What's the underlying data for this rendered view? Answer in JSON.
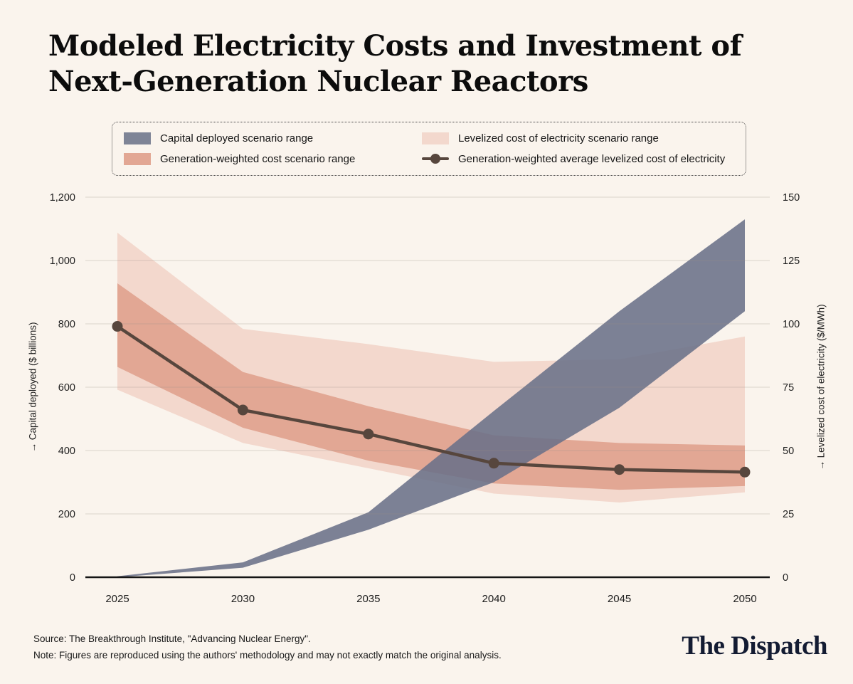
{
  "title": {
    "line1": "Modeled Electricity Costs and Investment of",
    "line2": "Next-Generation Nuclear Reactors"
  },
  "legend": {
    "items": [
      {
        "label": "Capital deployed scenario range",
        "series": 0,
        "marker": "swatch"
      },
      {
        "label": "Levelized cost of electricity scenario range",
        "series": 1,
        "marker": "swatch"
      },
      {
        "label": "Generation-weighted cost scenario range",
        "series": 2,
        "marker": "swatch"
      },
      {
        "label": "Generation-weighted average levelized cost of electricity",
        "series": 3,
        "marker": "line-dot"
      }
    ]
  },
  "chart_data": {
    "type": "area",
    "x": [
      2025,
      2030,
      2035,
      2040,
      2045,
      2050
    ],
    "x_labels": [
      "2025",
      "2030",
      "2035",
      "2040",
      "2045",
      "2050"
    ],
    "left_axis": {
      "label": "→ Capital deployed ($ billions)",
      "range": [
        0,
        1200
      ],
      "ticks": [
        0,
        200,
        400,
        600,
        800,
        1000,
        1200
      ],
      "tick_labels": [
        "0",
        "200",
        "400",
        "600",
        "800",
        "1,000",
        "1,200"
      ]
    },
    "right_axis": {
      "label": "→ Levelized cost of electricity ($/MWh)",
      "range": [
        0,
        150
      ],
      "ticks": [
        0,
        25,
        50,
        75,
        100,
        125,
        150
      ],
      "tick_labels": [
        "0",
        "25",
        "50",
        "75",
        "100",
        "125",
        "150"
      ]
    },
    "grid": "horizontal",
    "legend_position": "top",
    "series": [
      {
        "name": "Capital deployed scenario range",
        "type": "band",
        "axis": "left",
        "unit": "$ billions",
        "low": [
          0,
          30,
          150,
          300,
          535,
          840
        ],
        "high": [
          3,
          47,
          205,
          525,
          840,
          1130
        ],
        "color": "#7e8496",
        "fill": "#6a7189",
        "fill_opacity": 0.88
      },
      {
        "name": "Levelized cost of electricity scenario range",
        "type": "band",
        "axis": "right",
        "unit": "$/MWh",
        "low": [
          74,
          53,
          43,
          33,
          29.5,
          33.5
        ],
        "high": [
          136,
          98,
          92,
          85,
          86,
          95
        ],
        "color": "#f3d8cd"
      },
      {
        "name": "Generation-weighted cost scenario range",
        "type": "band",
        "axis": "right",
        "unit": "$/MWh",
        "low": [
          83,
          59,
          46,
          37,
          34.5,
          36
        ],
        "high": [
          116,
          81,
          67.5,
          56,
          53,
          52
        ],
        "color": "#e2a794"
      },
      {
        "name": "Generation-weighted average levelized cost of electricity",
        "type": "line",
        "axis": "right",
        "unit": "$/MWh",
        "values": [
          99,
          66,
          56.5,
          45,
          42.5,
          41.5
        ],
        "color": "#57463d"
      }
    ]
  },
  "footer": {
    "source": "Source: The Breakthrough Institute, \"Advancing Nuclear Energy\".",
    "note": "Note: Figures are reproduced using the authors' methodology and may not exactly match the original analysis.",
    "brand": "The Dispatch"
  },
  "colors": {
    "background": "#faf4ed",
    "grid": "#9a9087",
    "axis_line": "#151515",
    "title_text": "#0c0c0c",
    "brand_text": "#131b32"
  }
}
